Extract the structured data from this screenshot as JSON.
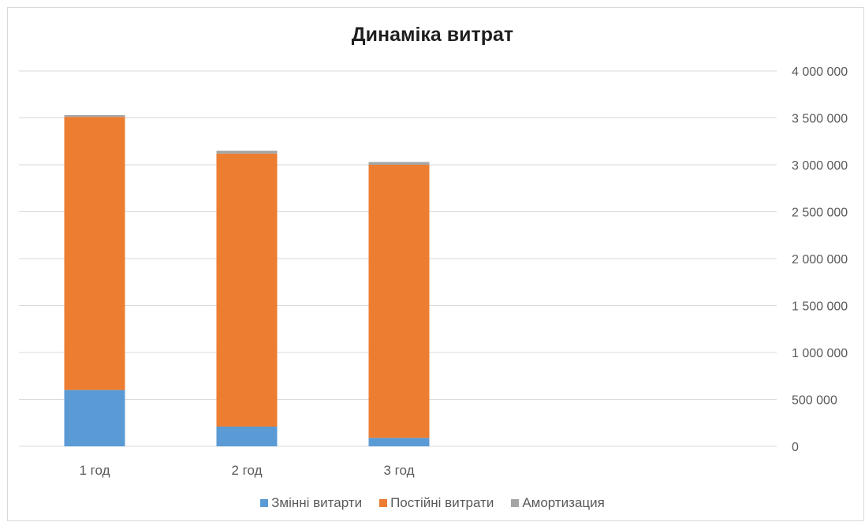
{
  "chart_data": {
    "type": "bar",
    "stacked": true,
    "title": "Динаміка витрат",
    "categories": [
      "1 год",
      "2 год",
      "3 год"
    ],
    "series": [
      {
        "name": "Змінні витарти",
        "color": "#5b9bd5",
        "values": [
          600000,
          210000,
          90000
        ]
      },
      {
        "name": "Постійні витрати",
        "color": "#ed7d31",
        "values": [
          2910000,
          2910000,
          2910000
        ]
      },
      {
        "name": "Амортизация",
        "color": "#a5a5a5",
        "values": [
          20000,
          30000,
          30000
        ]
      }
    ],
    "ylim": [
      0,
      4000000
    ],
    "yticks": [
      "0",
      "500 000",
      "1 000 000",
      "1 500 000",
      "2 000 000",
      "2 500 000",
      "3 000 000",
      "3 500 000",
      "4 000 000"
    ],
    "y_axis_side": "right",
    "grid": true,
    "legend": "bottom"
  }
}
